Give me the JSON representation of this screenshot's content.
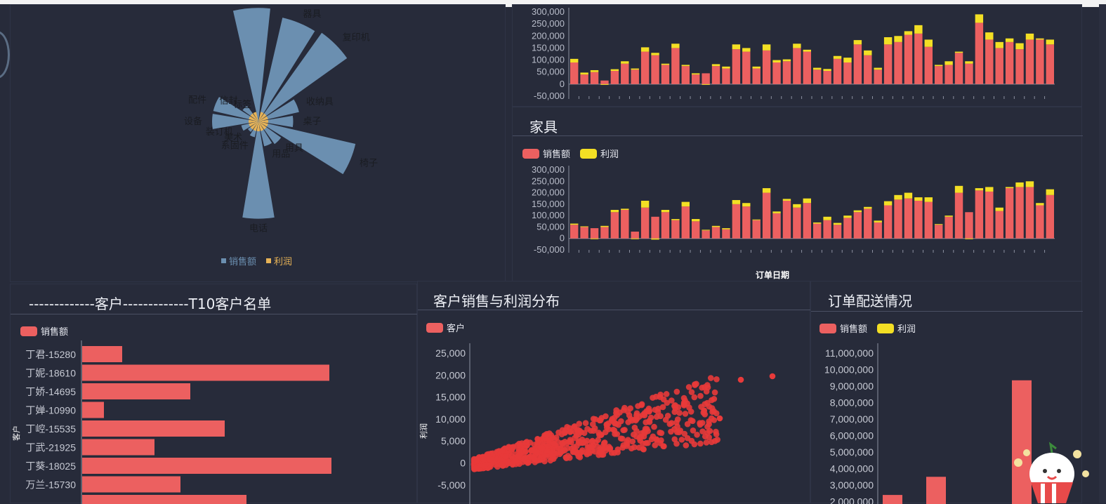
{
  "colors": {
    "background": "#272b3a",
    "sales": "#ec6060",
    "profit": "#f3df24",
    "rose_sales": "#6b8fb0",
    "rose_profit": "#e6b256",
    "scatter": "#e83a3a"
  },
  "top_right_chart": {
    "chart_data": {
      "type": "bar",
      "stacked": true,
      "ylim": [
        -50000,
        300000
      ],
      "yticks": [
        "300,000",
        "250,000",
        "200,000",
        "150,000",
        "100,000",
        "50,000",
        "0",
        "-50,000"
      ],
      "series": [
        {
          "name": "销售额",
          "values": [
            90000,
            40000,
            50000,
            15000,
            55000,
            85000,
            60000,
            135000,
            120000,
            80000,
            150000,
            75000,
            40000,
            45000,
            75000,
            65000,
            145000,
            135000,
            65000,
            140000,
            90000,
            95000,
            150000,
            135000,
            60000,
            55000,
            105000,
            90000,
            165000,
            120000,
            60000,
            165000,
            175000,
            205000,
            210000,
            155000,
            75000,
            80000,
            130000,
            85000,
            255000,
            185000,
            150000,
            175000,
            145000,
            185000,
            185000,
            165000
          ]
        },
        {
          "name": "利润",
          "values": [
            15000,
            8000,
            8000,
            -3000,
            7000,
            10000,
            5000,
            18000,
            10000,
            5000,
            18000,
            5000,
            5000,
            -3000,
            8000,
            8000,
            20000,
            15000,
            8000,
            25000,
            10000,
            8000,
            18000,
            8000,
            8000,
            8000,
            12000,
            20000,
            18000,
            20000,
            8000,
            30000,
            25000,
            15000,
            35000,
            30000,
            5000,
            15000,
            5000,
            10000,
            35000,
            30000,
            25000,
            15000,
            25000,
            25000,
            5000,
            20000
          ]
        }
      ]
    }
  },
  "rose": {
    "legend": [
      "销售额",
      "利润"
    ],
    "chart_data": {
      "type": "pie",
      "rose": true,
      "categories": [
        "器具",
        "复印机",
        "收纳具",
        "桌子",
        "椅子",
        "用具",
        "用品",
        "电话",
        "系固件",
        "美术",
        "装订机",
        "设备",
        "配件",
        "信封",
        "标签"
      ],
      "series": [
        {
          "name": "销售额",
          "values": [
            230,
            235,
            90,
            75,
            215,
            60,
            55,
            210,
            35,
            28,
            38,
            100,
            100,
            42,
            18
          ]
        },
        {
          "name": "利润",
          "values": [
            0,
            0,
            0,
            0,
            0,
            0,
            0,
            0,
            0,
            0,
            0,
            0,
            0,
            0,
            0
          ]
        }
      ],
      "top_spike": 245
    }
  },
  "furniture": {
    "title": "家具",
    "legend": [
      "销售额",
      "利润"
    ],
    "xlabel": "订单日期",
    "chart_data": {
      "type": "bar",
      "stacked": true,
      "ylim": [
        -50000,
        300000
      ],
      "yticks": [
        "300,000",
        "250,000",
        "200,000",
        "150,000",
        "100,000",
        "50,000",
        "0",
        "-50,000"
      ],
      "series": [
        {
          "name": "销售额",
          "values": [
            60000,
            50000,
            45000,
            50000,
            115000,
            125000,
            30000,
            135000,
            95000,
            115000,
            80000,
            140000,
            75000,
            35000,
            50000,
            40000,
            150000,
            140000,
            80000,
            200000,
            110000,
            165000,
            135000,
            155000,
            65000,
            80000,
            60000,
            90000,
            115000,
            130000,
            70000,
            145000,
            170000,
            175000,
            165000,
            160000,
            60000,
            95000,
            200000,
            115000,
            210000,
            205000,
            120000,
            220000,
            225000,
            225000,
            145000,
            190000
          ]
        },
        {
          "name": "利润",
          "values": [
            5000,
            3000,
            -3000,
            5000,
            10000,
            5000,
            -3000,
            30000,
            -5000,
            10000,
            5000,
            20000,
            10000,
            3000,
            5000,
            5000,
            18000,
            15000,
            3000,
            20000,
            8000,
            8000,
            15000,
            20000,
            5000,
            15000,
            8000,
            10000,
            8000,
            8000,
            8000,
            18000,
            20000,
            25000,
            15000,
            20000,
            3000,
            5000,
            30000,
            -3000,
            10000,
            20000,
            15000,
            5000,
            20000,
            25000,
            10000,
            25000
          ]
        }
      ]
    }
  },
  "customers": {
    "title": "-------------客户-------------T10客户名单",
    "legend": [
      "销售额"
    ],
    "ylabel": "客户",
    "chart_data": {
      "type": "bar",
      "orientation": "horizontal",
      "categories": [
        "丁君-15280",
        "丁妮-18610",
        "丁娇-14695",
        "丁婵-10990",
        "丁崆-15535",
        "丁武-21925",
        "丁葵-18025",
        "万兰-15730"
      ],
      "values": [
        57,
        352,
        154,
        31,
        203,
        103,
        355,
        140
      ]
    }
  },
  "scatter": {
    "title": "客户销售与利润分布",
    "legend": [
      "客户"
    ],
    "ylabel": "利润",
    "chart_data": {
      "type": "scatter",
      "ylim": [
        -5000,
        25000
      ],
      "yticks": [
        "25,000",
        "20,000",
        "15,000",
        "10,000",
        "5,000",
        "0",
        "-5,000"
      ]
    }
  },
  "shipping": {
    "title": "订单配送情况",
    "legend": [
      "销售额",
      "利润"
    ],
    "chart_data": {
      "type": "bar",
      "ylim": [
        2000000,
        11000000
      ],
      "yticks": [
        "11,000,000",
        "10,000,000",
        "9,000,000",
        "8,000,000",
        "7,000,000",
        "6,000,000",
        "5,000,000",
        "4,000,000",
        "3,000,000",
        "2,000,000"
      ],
      "series": [
        {
          "name": "销售额",
          "values": [
            2400000,
            3500000,
            9350000
          ]
        }
      ]
    }
  }
}
